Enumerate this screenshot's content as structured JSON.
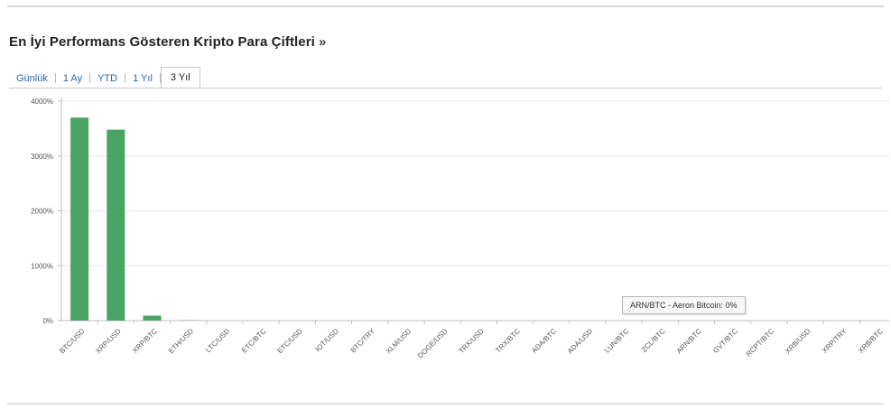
{
  "page": {
    "title": "En İyi Performans Gösteren Kripto Para Çiftleri",
    "title_arrow": "»"
  },
  "tabs": [
    {
      "label": "Günlük",
      "active": false
    },
    {
      "label": "1 Ay",
      "active": false
    },
    {
      "label": "YTD",
      "active": false
    },
    {
      "label": "1 Yıl",
      "active": false
    },
    {
      "label": "3 Yıl",
      "active": true
    }
  ],
  "tooltip": {
    "text": "ARN/BTC - Aeron Bitcoin: 0%"
  },
  "colors": {
    "bar": "#4aa564",
    "grid": "#e6e6e6",
    "axis": "#bdbdbd",
    "tick_label": "#555555"
  },
  "chart_data": {
    "type": "bar",
    "categories": [
      "BTC/USD",
      "XRP/USD",
      "XRP/BTC",
      "ETH/USD",
      "LTC/USD",
      "ETC/BTC",
      "ETC/USD",
      "IOT/USD",
      "BTC/TRY",
      "XLM/USD",
      "DOGE/USD",
      "TRX/USD",
      "TRX/BTC",
      "ADA/BTC",
      "ADA/USD",
      "LUN/BTC",
      "ZCL/BTC",
      "ARN/BTC",
      "GVT/BTC",
      "RCPT/BTC",
      "XRB/USD",
      "XRP/TRY",
      "XRB/BTC"
    ],
    "values": [
      3700,
      3480,
      90,
      5,
      3,
      2,
      2,
      1,
      1,
      1,
      1,
      1,
      1,
      1,
      1,
      0,
      0,
      0,
      0,
      0,
      0,
      0,
      0
    ],
    "ylim": [
      0,
      4000
    ],
    "yticks": [
      "0%",
      "1000%",
      "2000%",
      "3000%",
      "4000%"
    ],
    "ytick_values": [
      0,
      1000,
      2000,
      3000,
      4000
    ],
    "grid": true,
    "title": "",
    "xlabel": "",
    "ylabel": ""
  }
}
